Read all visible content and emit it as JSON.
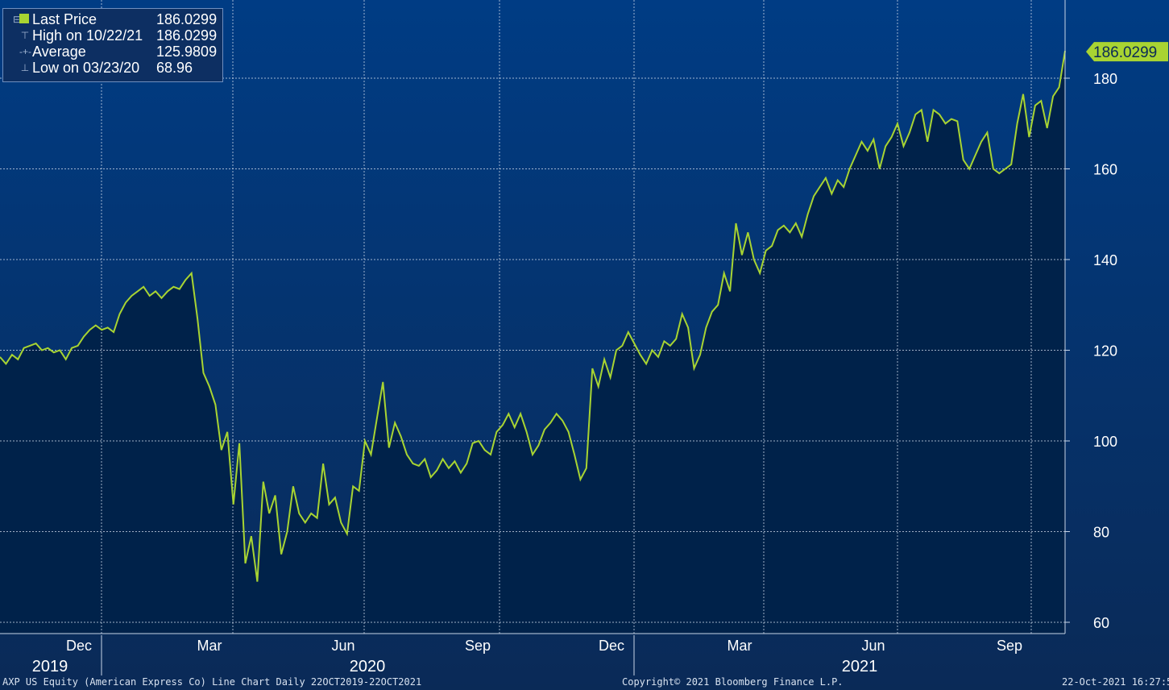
{
  "legend": {
    "last_price_label": "Last Price",
    "last_price_value": "186.0299",
    "high_label": "High on 10/22/21",
    "high_value": "186.0299",
    "average_label": "Average",
    "average_value": "125.9809",
    "low_label": "Low on 03/23/20",
    "low_value": "68.96"
  },
  "footer": {
    "left": "AXP US Equity (American Express Co) Line Chart  Daily 22OCT2019-22OCT2021",
    "center": "Copyright© 2021 Bloomberg Finance L.P.",
    "right": "22-Oct-2021 16:27:53"
  },
  "chart_data": {
    "type": "area",
    "ylim": [
      58,
      190
    ],
    "y_ticks": [
      60,
      80,
      100,
      120,
      140,
      160,
      180
    ],
    "x_month_labels": [
      "Dec",
      "Mar",
      "Jun",
      "Sep",
      "Dec",
      "Mar",
      "Jun",
      "Sep"
    ],
    "x_year_labels": [
      "2019",
      "2020",
      "2021"
    ],
    "grid": true,
    "last_value_label": "186.0299",
    "colors": {
      "line": "#a8d432",
      "fill": "#00224a",
      "background_top": "#003a82",
      "background_bottom": "#0a2a57",
      "grid": "#c8d4e6"
    },
    "series": [
      {
        "values": [
          118.5,
          117.0,
          119.0,
          118.0,
          120.5,
          121.0,
          121.5,
          120.0,
          120.5,
          119.5,
          120.0,
          118.0,
          120.5,
          121.0,
          123.0,
          124.5,
          125.5,
          124.5,
          125.0,
          124.0,
          128.0,
          130.5,
          132.0,
          133.0,
          134.0,
          132.0,
          133.0,
          131.5,
          133.0,
          134.0,
          133.5,
          135.5,
          137.0,
          127.0,
          115.0,
          112.0,
          108.0,
          98.0,
          102.0,
          86.0,
          99.5,
          73.0,
          79.0,
          68.96,
          91.0,
          84.0,
          88.0,
          75.0,
          80.0,
          90.0,
          84.0,
          82.0,
          84.0,
          83.0,
          95.0,
          86.0,
          87.5,
          82.0,
          79.5,
          90.0,
          89.0,
          100.0,
          97.0,
          105.0,
          113.0,
          98.5,
          104.0,
          101.0,
          97.0,
          95.0,
          94.5,
          96.0,
          92.0,
          93.5,
          96.0,
          94.0,
          95.5,
          93.0,
          95.0,
          99.5,
          100.0,
          98.0,
          97.0,
          102.0,
          103.5,
          106.0,
          103.0,
          106.0,
          102.0,
          97.0,
          99.0,
          102.5,
          104.0,
          106.0,
          104.5,
          102.0,
          97.0,
          91.5,
          94.0,
          116.0,
          112.0,
          118.0,
          114.0,
          120.0,
          121.0,
          124.0,
          121.5,
          119.0,
          117.0,
          120.0,
          118.5,
          122.0,
          121.0,
          122.5,
          128.0,
          125.0,
          116.0,
          119.0,
          125.0,
          128.5,
          130.0,
          137.0,
          133.0,
          148.0,
          141.0,
          146.0,
          140.0,
          137.0,
          142.0,
          143.0,
          146.5,
          147.5,
          146.0,
          148.0,
          145.0,
          150.0,
          154.0,
          156.0,
          158.0,
          154.5,
          157.5,
          156.0,
          160.0,
          163.0,
          166.0,
          164.0,
          166.5,
          160.0,
          165.0,
          167.0,
          170.0,
          165.0,
          168.0,
          172.0,
          173.0,
          166.0,
          173.0,
          172.0,
          170.0,
          171.0,
          170.5,
          162.0,
          160.0,
          163.0,
          166.0,
          168.0,
          160.0,
          159.0,
          160.0,
          161.0,
          170.0,
          176.5,
          167.0,
          174.0,
          175.0,
          169.0,
          176.0,
          178.0,
          186.0299
        ]
      }
    ]
  }
}
